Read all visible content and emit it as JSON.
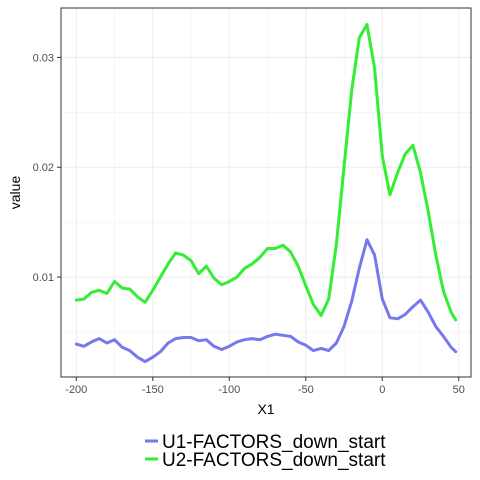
{
  "chart_data": {
    "type": "line",
    "title": "",
    "xlabel": "X1",
    "ylabel": "value",
    "xlim": [
      -210,
      58
    ],
    "ylim": [
      0.0009,
      0.0345
    ],
    "x_ticks": [
      -200,
      -150,
      -100,
      -50,
      0,
      50
    ],
    "x_tick_labels": [
      "-200",
      "-150",
      "-100",
      "-50",
      "0",
      "50"
    ],
    "y_ticks": [
      0.01,
      0.02,
      0.03
    ],
    "y_tick_labels": [
      "0.01",
      "0.02",
      "0.03"
    ],
    "grid": true,
    "legend_position": "bottom",
    "series": [
      {
        "name": "U1-FACTORS_down_start",
        "color": "#7777ee",
        "points": [
          [
            -200,
            0.0039
          ],
          [
            -195,
            0.0037
          ],
          [
            -190,
            0.0041
          ],
          [
            -185,
            0.0044
          ],
          [
            -180,
            0.004
          ],
          [
            -175,
            0.0043
          ],
          [
            -170,
            0.0036
          ],
          [
            -165,
            0.0033
          ],
          [
            -160,
            0.0027
          ],
          [
            -155,
            0.0023
          ],
          [
            -150,
            0.0027
          ],
          [
            -145,
            0.0032
          ],
          [
            -140,
            0.004
          ],
          [
            -135,
            0.0044
          ],
          [
            -130,
            0.0045
          ],
          [
            -125,
            0.0045
          ],
          [
            -120,
            0.0042
          ],
          [
            -115,
            0.0043
          ],
          [
            -110,
            0.0037
          ],
          [
            -105,
            0.0034
          ],
          [
            -100,
            0.0037
          ],
          [
            -95,
            0.0041
          ],
          [
            -90,
            0.0043
          ],
          [
            -85,
            0.0044
          ],
          [
            -80,
            0.0043
          ],
          [
            -75,
            0.0046
          ],
          [
            -70,
            0.0048
          ],
          [
            -65,
            0.0047
          ],
          [
            -60,
            0.0046
          ],
          [
            -55,
            0.0041
          ],
          [
            -50,
            0.0038
          ],
          [
            -45,
            0.0033
          ],
          [
            -40,
            0.0035
          ],
          [
            -35,
            0.0033
          ],
          [
            -30,
            0.004
          ],
          [
            -25,
            0.0055
          ],
          [
            -20,
            0.0078
          ],
          [
            -15,
            0.0108
          ],
          [
            -10,
            0.0134
          ],
          [
            -5,
            0.012
          ],
          [
            0,
            0.008
          ],
          [
            5,
            0.0063
          ],
          [
            10,
            0.0062
          ],
          [
            15,
            0.0066
          ],
          [
            20,
            0.0073
          ],
          [
            25,
            0.0079
          ],
          [
            30,
            0.0068
          ],
          [
            35,
            0.0055
          ],
          [
            40,
            0.0046
          ],
          [
            45,
            0.0036
          ],
          [
            48,
            0.0032
          ]
        ]
      },
      {
        "name": "U2-FACTORS_down_start",
        "color": "#33ee33",
        "points": [
          [
            -200,
            0.0079
          ],
          [
            -195,
            0.008
          ],
          [
            -190,
            0.0086
          ],
          [
            -185,
            0.0088
          ],
          [
            -180,
            0.0085
          ],
          [
            -175,
            0.0096
          ],
          [
            -170,
            0.009
          ],
          [
            -165,
            0.0089
          ],
          [
            -160,
            0.0082
          ],
          [
            -155,
            0.0077
          ],
          [
            -150,
            0.0088
          ],
          [
            -145,
            0.01
          ],
          [
            -140,
            0.0112
          ],
          [
            -135,
            0.0122
          ],
          [
            -130,
            0.012
          ],
          [
            -125,
            0.0115
          ],
          [
            -120,
            0.0103
          ],
          [
            -115,
            0.011
          ],
          [
            -110,
            0.0099
          ],
          [
            -105,
            0.0093
          ],
          [
            -100,
            0.0096
          ],
          [
            -95,
            0.01
          ],
          [
            -90,
            0.0108
          ],
          [
            -85,
            0.0112
          ],
          [
            -80,
            0.0118
          ],
          [
            -75,
            0.0126
          ],
          [
            -70,
            0.0126
          ],
          [
            -65,
            0.0129
          ],
          [
            -60,
            0.0123
          ],
          [
            -55,
            0.011
          ],
          [
            -50,
            0.0092
          ],
          [
            -45,
            0.0075
          ],
          [
            -40,
            0.0065
          ],
          [
            -35,
            0.008
          ],
          [
            -30,
            0.013
          ],
          [
            -25,
            0.02
          ],
          [
            -20,
            0.027
          ],
          [
            -15,
            0.0318
          ],
          [
            -10,
            0.033
          ],
          [
            -5,
            0.029
          ],
          [
            0,
            0.021
          ],
          [
            5,
            0.0175
          ],
          [
            10,
            0.0195
          ],
          [
            15,
            0.0212
          ],
          [
            20,
            0.022
          ],
          [
            25,
            0.0195
          ],
          [
            30,
            0.016
          ],
          [
            35,
            0.012
          ],
          [
            40,
            0.0087
          ],
          [
            45,
            0.0068
          ],
          [
            48,
            0.0061
          ]
        ]
      }
    ]
  }
}
